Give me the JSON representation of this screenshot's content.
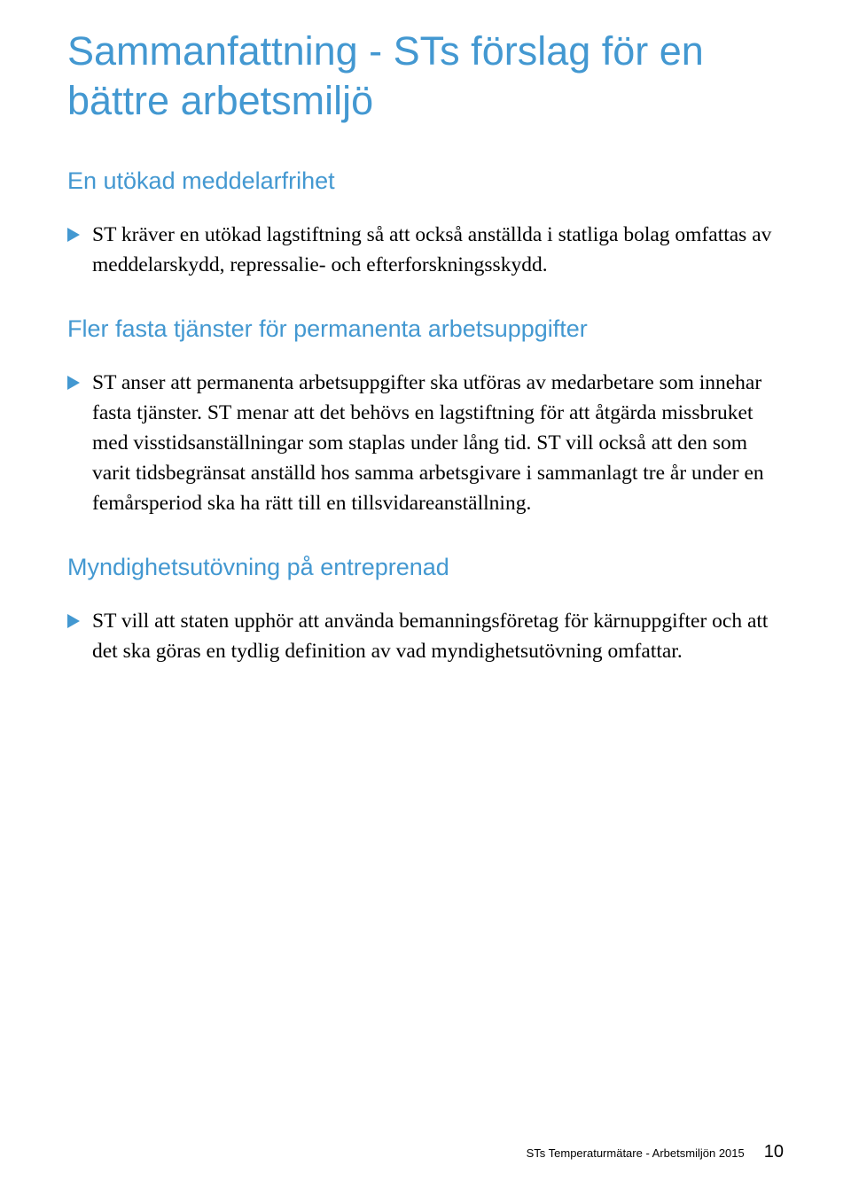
{
  "colors": {
    "accent_blue": "#4398d1",
    "text_black": "#000000"
  },
  "title": "Sammanfattning - STs förslag för en bättre arbetsmiljö",
  "sections": [
    {
      "heading": "En utökad meddelarfrihet",
      "body": "ST kräver en utökad lagstiftning så att också anställda i statliga bolag omfattas av meddelarskydd, repressalie- och efterforskningsskydd."
    },
    {
      "heading": "Fler fasta tjänster för permanenta arbetsuppgifter",
      "body": "ST anser att permanenta arbetsuppgifter ska utföras av medarbetare som innehar fasta tjänster. ST menar att det behövs en lagstiftning för att åtgärda missbruket med visstidsanställningar som staplas under lång tid. ST vill också att den som varit tidsbegränsat anställd hos samma arbetsgivare i sammanlagt tre år under en femårsperiod ska ha rätt till en tillsvidareanställning."
    },
    {
      "heading": "Myndighetsutövning på entreprenad",
      "body": "ST vill att staten upphör att använda bemanningsföretag för kärnuppgifter och att det ska göras en tydlig definition av vad myndighetsutövning omfattar."
    }
  ],
  "footer": {
    "label": "STs Temperaturmätare - Arbetsmiljön 2015",
    "page": "10"
  }
}
